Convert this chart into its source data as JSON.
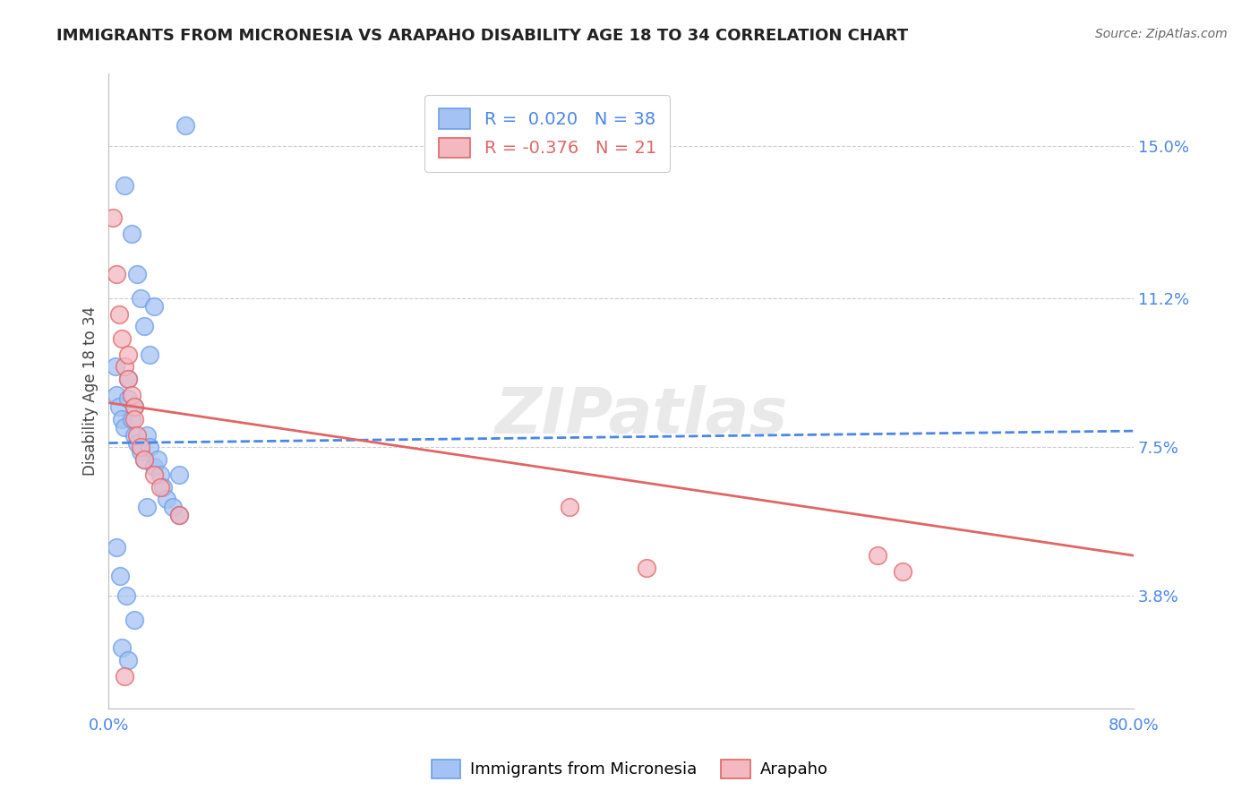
{
  "title": "IMMIGRANTS FROM MICRONESIA VS ARAPAHO DISABILITY AGE 18 TO 34 CORRELATION CHART",
  "source": "Source: ZipAtlas.com",
  "ylabel": "Disability Age 18 to 34",
  "xlim": [
    0.0,
    0.8
  ],
  "ylim": [
    0.01,
    0.168
  ],
  "xticks": [
    0.0,
    0.2,
    0.4,
    0.6,
    0.8
  ],
  "xtick_labels": [
    "0.0%",
    "",
    "",
    "",
    "80.0%"
  ],
  "yticks": [
    0.038,
    0.075,
    0.112,
    0.15
  ],
  "ytick_labels": [
    "3.8%",
    "7.5%",
    "11.2%",
    "15.0%"
  ],
  "blue_R": 0.02,
  "blue_N": 38,
  "pink_R": -0.376,
  "pink_N": 21,
  "blue_color": "#a4c2f4",
  "pink_color": "#f4b8c1",
  "blue_edge_color": "#6d9eeb",
  "pink_edge_color": "#e06666",
  "blue_line_color": "#4a86e8",
  "pink_line_color": "#e06666",
  "legend_text_color": "#4a86e8",
  "background_color": "#ffffff",
  "grid_color": "#cccccc",
  "title_color": "#222222",
  "source_color": "#666666",
  "blue_scatter_x": [
    0.012,
    0.018,
    0.022,
    0.025,
    0.028,
    0.032,
    0.035,
    0.005,
    0.006,
    0.008,
    0.01,
    0.012,
    0.015,
    0.015,
    0.018,
    0.02,
    0.02,
    0.022,
    0.025,
    0.028,
    0.03,
    0.032,
    0.035,
    0.038,
    0.04,
    0.042,
    0.045,
    0.05,
    0.055,
    0.06,
    0.006,
    0.009,
    0.014,
    0.02,
    0.055,
    0.01,
    0.015,
    0.03
  ],
  "blue_scatter_y": [
    0.14,
    0.128,
    0.118,
    0.112,
    0.105,
    0.098,
    0.11,
    0.095,
    0.088,
    0.085,
    0.082,
    0.08,
    0.092,
    0.087,
    0.082,
    0.085,
    0.078,
    0.076,
    0.074,
    0.072,
    0.078,
    0.075,
    0.07,
    0.072,
    0.068,
    0.065,
    0.062,
    0.06,
    0.058,
    0.155,
    0.05,
    0.043,
    0.038,
    0.032,
    0.068,
    0.025,
    0.022,
    0.06
  ],
  "pink_scatter_x": [
    0.003,
    0.006,
    0.008,
    0.01,
    0.012,
    0.015,
    0.015,
    0.018,
    0.02,
    0.02,
    0.022,
    0.025,
    0.028,
    0.035,
    0.04,
    0.055,
    0.36,
    0.42,
    0.6,
    0.62,
    0.012
  ],
  "pink_scatter_y": [
    0.132,
    0.118,
    0.108,
    0.102,
    0.095,
    0.098,
    0.092,
    0.088,
    0.085,
    0.082,
    0.078,
    0.075,
    0.072,
    0.068,
    0.065,
    0.058,
    0.06,
    0.045,
    0.048,
    0.044,
    0.018
  ],
  "blue_trend_x": [
    0.0,
    0.8
  ],
  "blue_trend_y": [
    0.076,
    0.079
  ],
  "pink_trend_x": [
    0.0,
    0.8
  ],
  "pink_trend_y": [
    0.086,
    0.048
  ],
  "watermark": "ZIPatlas"
}
